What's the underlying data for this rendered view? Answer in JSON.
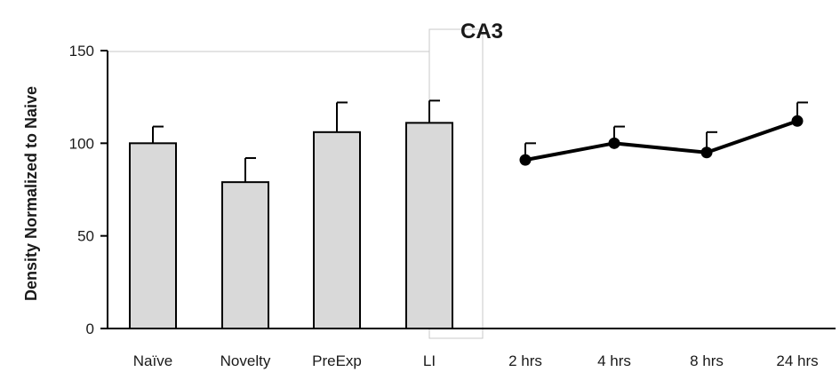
{
  "chart_data": {
    "type": "bar",
    "title": "CA3",
    "ylabel": "Density Normalized to Naive",
    "ylim": [
      0,
      150
    ],
    "yticks": [
      0,
      50,
      100,
      150
    ],
    "grid": false,
    "bar_color": "#d9d9d9",
    "line_color": "#000000",
    "bars": {
      "categories": [
        "Naïve",
        "Novelty",
        "PreExp",
        "LI"
      ],
      "values": [
        100,
        79,
        106,
        111
      ],
      "errors": [
        9,
        13,
        16,
        12
      ]
    },
    "line": {
      "type": "line",
      "categories": [
        "2 hrs",
        "4 hrs",
        "8 hrs",
        "24 hrs"
      ],
      "values": [
        91,
        100,
        95,
        112
      ],
      "errors": [
        9,
        9,
        11,
        10
      ]
    }
  }
}
